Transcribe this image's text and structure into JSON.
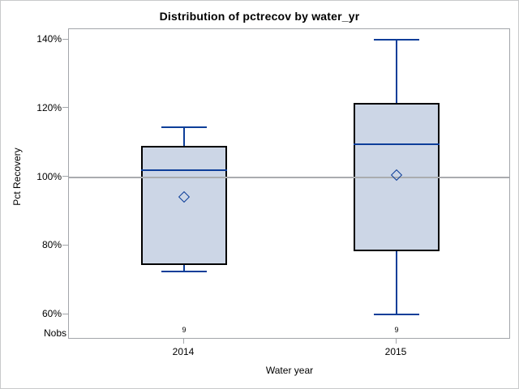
{
  "title": "Distribution of pctrecov by water_yr",
  "nobs_label": "Nobs",
  "colors": {
    "box_fill": "#ccd6e6",
    "box_border": "#000000",
    "line_blue": "#0d3e99",
    "ref_line": "#aaacaf",
    "axis_color": "#a3a6aa",
    "outer_border": "#c8c9cb",
    "text_color": "#000000"
  },
  "chart_data": {
    "type": "boxplot",
    "title": "Distribution of pctrecov by water_yr",
    "xlabel": "Water year",
    "ylabel": "Pct Recovery",
    "categories": [
      "2014",
      "2015"
    ],
    "y_ticks": [
      {
        "value": 140,
        "label": "140%"
      },
      {
        "value": 120,
        "label": "120%"
      },
      {
        "value": 100,
        "label": "100%"
      },
      {
        "value": 80,
        "label": "80%"
      },
      {
        "value": 60,
        "label": "60%"
      }
    ],
    "ylim": [
      53,
      143
    ],
    "reference_line": 100,
    "grid": "horizontal reference line at 100% only",
    "legend": "none",
    "series": [
      {
        "category": "2014",
        "nobs": 9,
        "min": 72.5,
        "q1": 74.5,
        "median": 102,
        "mean": 94,
        "q3": 109,
        "max": 114.5
      },
      {
        "category": "2015",
        "nobs": 9,
        "min": 60,
        "q1": 78.5,
        "median": 109.5,
        "mean": 100.5,
        "q3": 121.5,
        "max": 140
      }
    ]
  }
}
